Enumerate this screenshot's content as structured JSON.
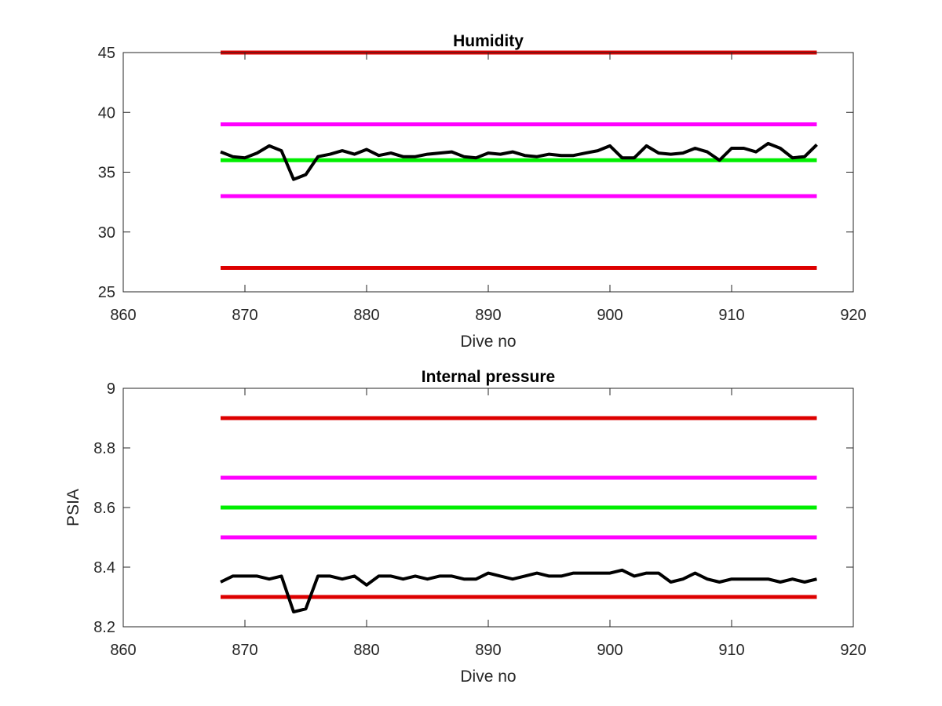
{
  "chart_data": [
    {
      "type": "line",
      "title": "Humidity",
      "xlabel": "Dive no",
      "ylabel": "",
      "xlim": [
        860,
        920
      ],
      "ylim": [
        25,
        45
      ],
      "xticks": [
        "860",
        "870",
        "880",
        "890",
        "900",
        "910",
        "920"
      ],
      "yticks": [
        "25",
        "30",
        "35",
        "40",
        "45"
      ],
      "grid": false,
      "legend": "none",
      "reference_lines": [
        {
          "y": 45,
          "x_range": [
            868,
            917
          ],
          "color": "#dd0000"
        },
        {
          "y": 39,
          "x_range": [
            868,
            917
          ],
          "color": "#ff00ff"
        },
        {
          "y": 36,
          "x_range": [
            868,
            917
          ],
          "color": "#00ee00"
        },
        {
          "y": 33,
          "x_range": [
            868,
            917
          ],
          "color": "#ff00ff"
        },
        {
          "y": 27,
          "x_range": [
            868,
            917
          ],
          "color": "#dd0000"
        }
      ],
      "series": [
        {
          "color": "#000000",
          "x": [
            868,
            869,
            870,
            871,
            872,
            873,
            874,
            875,
            876,
            877,
            878,
            879,
            880,
            881,
            882,
            883,
            884,
            885,
            886,
            887,
            888,
            889,
            890,
            891,
            892,
            893,
            894,
            895,
            896,
            897,
            898,
            899,
            900,
            901,
            902,
            903,
            904,
            905,
            906,
            907,
            908,
            909,
            910,
            911,
            912,
            913,
            914,
            915,
            916,
            917
          ],
          "y": [
            36.7,
            36.3,
            36.2,
            36.6,
            37.2,
            36.8,
            34.4,
            34.8,
            36.3,
            36.5,
            36.8,
            36.5,
            36.9,
            36.4,
            36.6,
            36.3,
            36.3,
            36.5,
            36.6,
            36.7,
            36.3,
            36.2,
            36.6,
            36.5,
            36.7,
            36.4,
            36.3,
            36.5,
            36.4,
            36.4,
            36.6,
            36.8,
            37.2,
            36.2,
            36.2,
            37.2,
            36.6,
            36.5,
            36.6,
            37.0,
            36.7,
            36.0,
            37.0,
            37.0,
            36.7,
            37.4,
            37.0,
            36.2,
            36.3,
            37.3
          ]
        }
      ]
    },
    {
      "type": "line",
      "title": "Internal pressure",
      "xlabel": "Dive no",
      "ylabel": "PSIA",
      "xlim": [
        860,
        920
      ],
      "ylim": [
        8.2,
        9
      ],
      "xticks": [
        "860",
        "870",
        "880",
        "890",
        "900",
        "910",
        "920"
      ],
      "yticks": [
        "8.2",
        "8.4",
        "8.6",
        "8.8",
        "9"
      ],
      "grid": false,
      "legend": "none",
      "reference_lines": [
        {
          "y": 8.9,
          "x_range": [
            868,
            917
          ],
          "color": "#dd0000"
        },
        {
          "y": 8.7,
          "x_range": [
            868,
            917
          ],
          "color": "#ff00ff"
        },
        {
          "y": 8.6,
          "x_range": [
            868,
            917
          ],
          "color": "#00ee00"
        },
        {
          "y": 8.5,
          "x_range": [
            868,
            917
          ],
          "color": "#ff00ff"
        },
        {
          "y": 8.3,
          "x_range": [
            868,
            917
          ],
          "color": "#dd0000"
        }
      ],
      "series": [
        {
          "color": "#000000",
          "x": [
            868,
            869,
            870,
            871,
            872,
            873,
            874,
            875,
            876,
            877,
            878,
            879,
            880,
            881,
            882,
            883,
            884,
            885,
            886,
            887,
            888,
            889,
            890,
            891,
            892,
            893,
            894,
            895,
            896,
            897,
            898,
            899,
            900,
            901,
            902,
            903,
            904,
            905,
            906,
            907,
            908,
            909,
            910,
            911,
            912,
            913,
            914,
            915,
            916,
            917
          ],
          "y": [
            8.35,
            8.37,
            8.37,
            8.37,
            8.36,
            8.37,
            8.25,
            8.26,
            8.37,
            8.37,
            8.36,
            8.37,
            8.34,
            8.37,
            8.37,
            8.36,
            8.37,
            8.36,
            8.37,
            8.37,
            8.36,
            8.36,
            8.38,
            8.37,
            8.36,
            8.37,
            8.38,
            8.37,
            8.37,
            8.38,
            8.38,
            8.38,
            8.38,
            8.39,
            8.37,
            8.38,
            8.38,
            8.35,
            8.36,
            8.38,
            8.36,
            8.35,
            8.36,
            8.36,
            8.36,
            8.36,
            8.35,
            8.36,
            8.35,
            8.36
          ]
        }
      ]
    }
  ]
}
